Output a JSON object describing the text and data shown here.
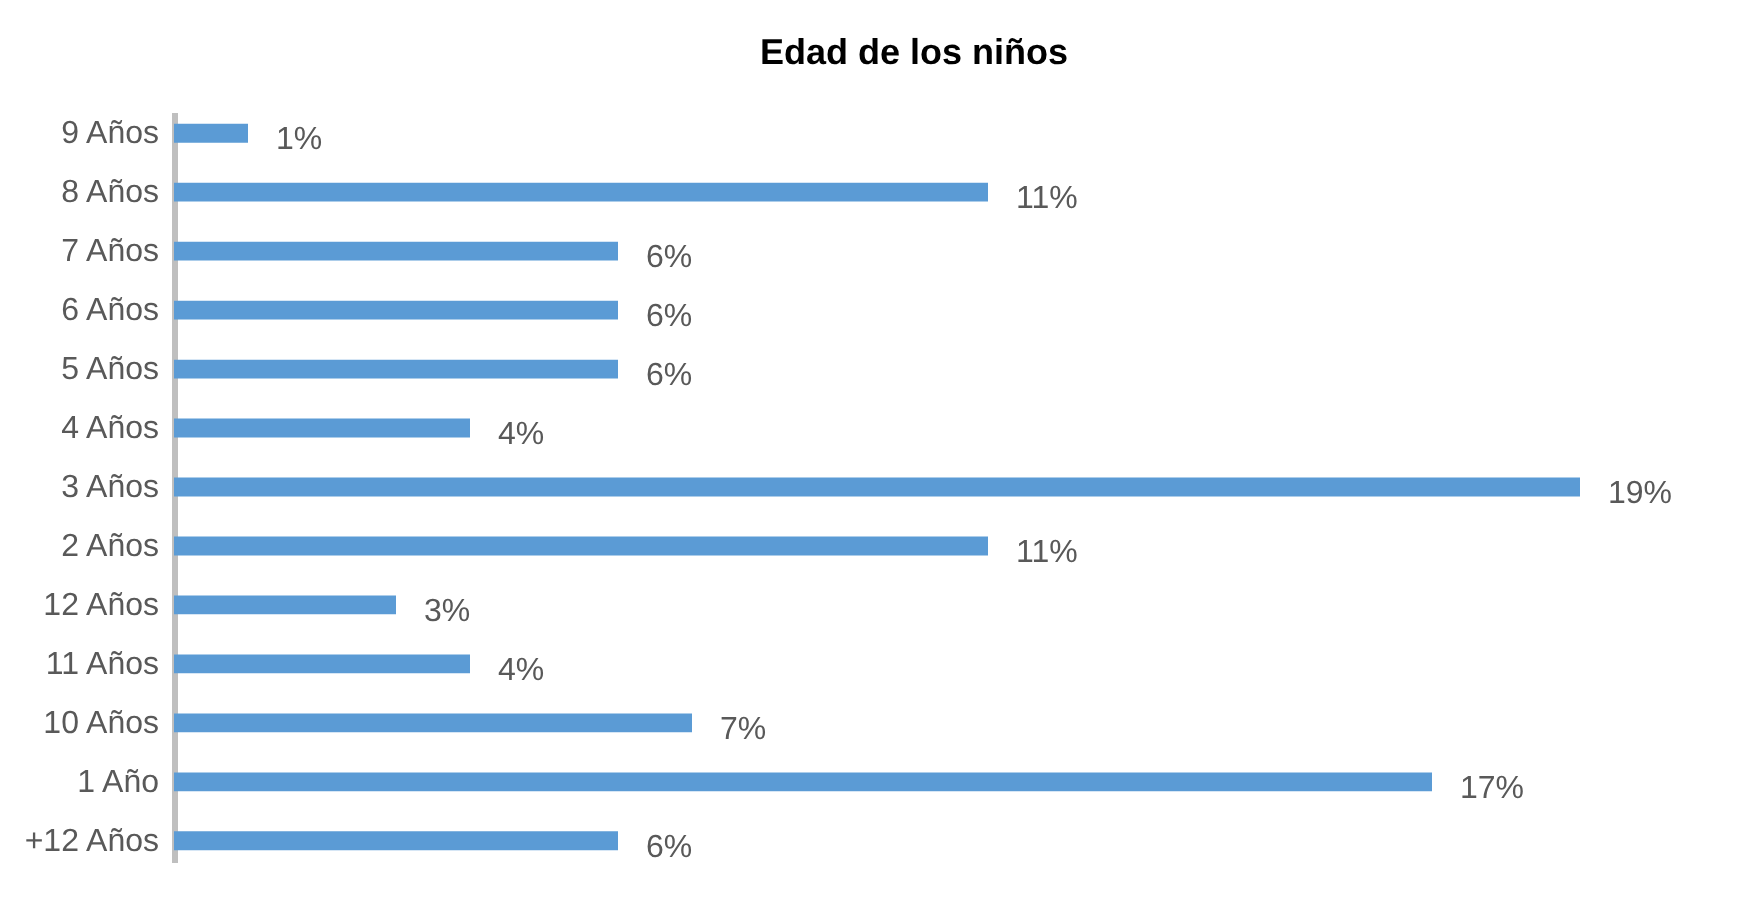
{
  "chart_data": {
    "type": "bar",
    "orientation": "horizontal",
    "title": "Edad de los niños",
    "categories": [
      "9 Años",
      "8 Años",
      "7 Años",
      "6 Años",
      "5 Años",
      "4 Años",
      "3 Años",
      "2 Años",
      "12 Años",
      "11 Años",
      "10 Años",
      "1 Año",
      "+12 Años"
    ],
    "values": [
      1,
      11,
      6,
      6,
      6,
      4,
      19,
      11,
      3,
      4,
      7,
      17,
      6
    ],
    "value_labels": [
      "1%",
      "11%",
      "6%",
      "6%",
      "6%",
      "4%",
      "19%",
      "11%",
      "3%",
      "4%",
      "7%",
      "17%",
      "6%"
    ],
    "color": "#5b9bd5",
    "grid": false
  }
}
